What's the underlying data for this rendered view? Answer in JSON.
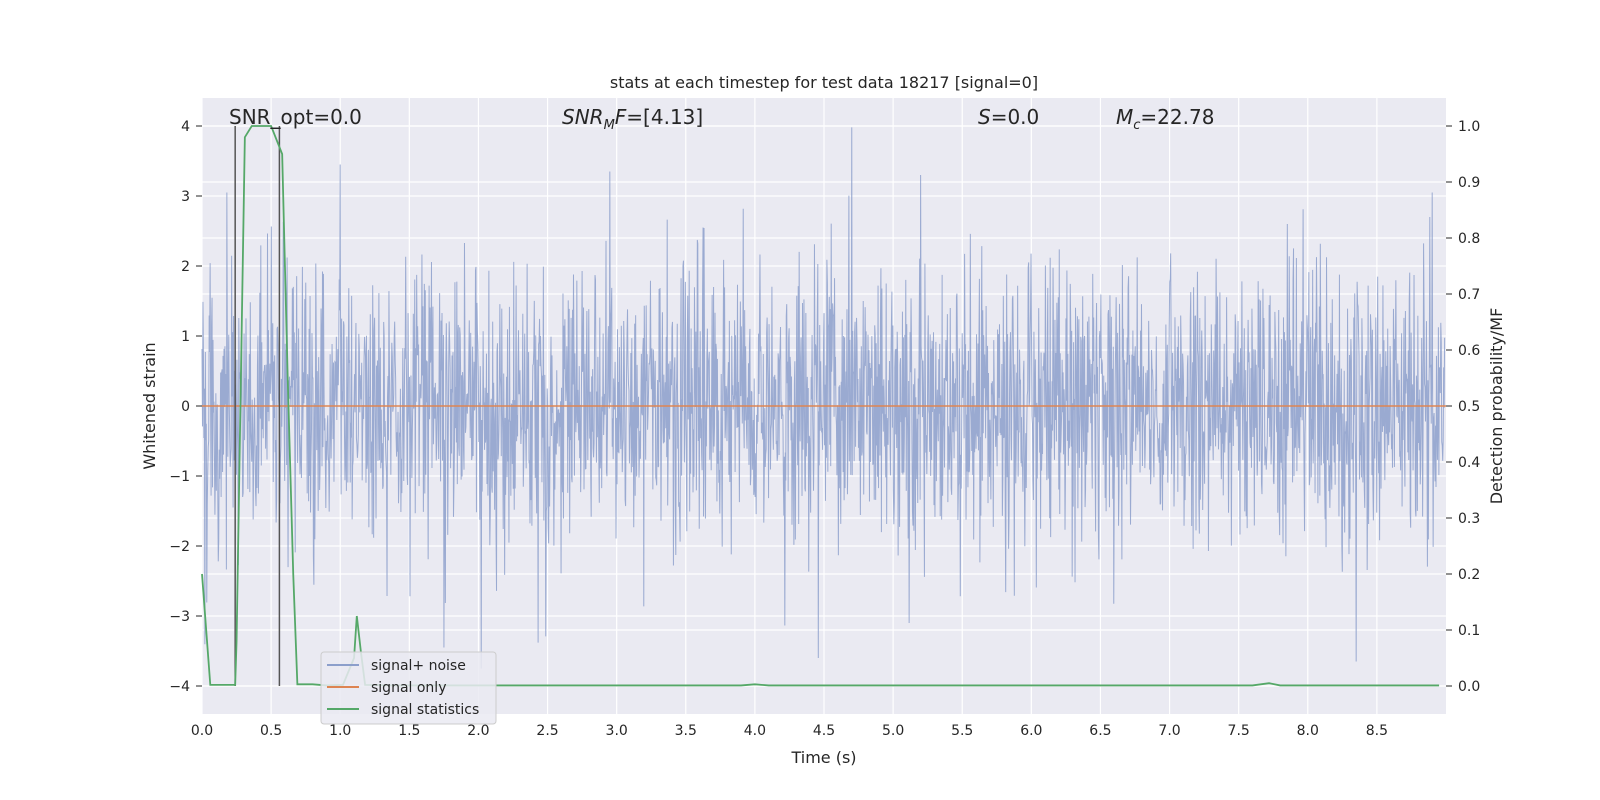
{
  "chart_data": {
    "type": "line",
    "title": "stats at each timestep for test data 18217 [signal=0]",
    "xlabel": "Time (s)",
    "ylabel": "Whitened strain",
    "ylabel_right": "Detection probability/MF",
    "xlim": [
      0.0,
      9.0
    ],
    "ylim": [
      -4.4,
      4.4
    ],
    "ylim_right": [
      -0.05,
      1.05
    ],
    "x_ticks": [
      0.0,
      0.5,
      1.0,
      1.5,
      2.0,
      2.5,
      3.0,
      3.5,
      4.0,
      4.5,
      5.0,
      5.5,
      6.0,
      6.5,
      7.0,
      7.5,
      8.0,
      8.5
    ],
    "x_tick_labels": [
      "0.0",
      "0.5",
      "1.0",
      "1.5",
      "2.0",
      "2.5",
      "3.0",
      "3.5",
      "4.0",
      "4.5",
      "5.0",
      "5.5",
      "6.0",
      "6.5",
      "7.0",
      "7.5",
      "8.0",
      "8.5"
    ],
    "y_ticks": [
      -4,
      -3,
      -2,
      -1,
      0,
      1,
      2,
      3,
      4
    ],
    "y_tick_labels": [
      "−4",
      "−3",
      "−2",
      "−1",
      "0",
      "1",
      "2",
      "3",
      "4"
    ],
    "y_ticks_right": [
      0.0,
      0.1,
      0.2,
      0.3,
      0.4,
      0.5,
      0.6,
      0.7,
      0.8,
      0.9,
      1.0
    ],
    "y_tick_labels_right": [
      "0.0",
      "0.1",
      "0.2",
      "0.3",
      "0.4",
      "0.5",
      "0.6",
      "0.7",
      "0.8",
      "0.9",
      "1.0"
    ],
    "annotations": {
      "snr_opt": "SNR_opt=0.0",
      "snr_mf_label": "SNR",
      "snr_mf_sub": "M",
      "snr_mf_rest": "F=[4.13]",
      "s_label": "S",
      "s_rest": "=0.0",
      "mc_label": "M",
      "mc_sub": "c",
      "mc_rest": "=22.78"
    },
    "vertical_lines_x": [
      0.24,
      0.56
    ],
    "series": [
      {
        "name": "signal+ noise",
        "color": "#8c9fcb",
        "axis": "left",
        "description": "whitened noise, roughly Gaussian with std ~1",
        "x_range": [
          0.0,
          8.99
        ],
        "amplitude_range": [
          -3.7,
          3.98
        ],
        "notable_peaks": [
          {
            "x": 0.18,
            "y": 3.05
          },
          {
            "x": 1.0,
            "y": 3.45
          },
          {
            "x": 1.75,
            "y": -3.45
          },
          {
            "x": 2.02,
            "y": -3.75
          },
          {
            "x": 2.95,
            "y": 3.35
          },
          {
            "x": 4.46,
            "y": -3.6
          },
          {
            "x": 4.7,
            "y": 3.98
          },
          {
            "x": 5.2,
            "y": 3.3
          },
          {
            "x": 8.35,
            "y": -3.65
          },
          {
            "x": 8.9,
            "y": 3.05
          }
        ]
      },
      {
        "name": "signal only",
        "color": "#dd8452",
        "axis": "left",
        "x": [
          0.0,
          9.0
        ],
        "y": [
          0.0,
          0.0
        ]
      },
      {
        "name": "signal statistics",
        "color": "#55a868",
        "axis": "right",
        "x": [
          0.0,
          0.06,
          0.24,
          0.25,
          0.31,
          0.36,
          0.5,
          0.58,
          0.62,
          0.66,
          0.69,
          0.8,
          0.9,
          1.02,
          1.1,
          1.12,
          1.15,
          1.18,
          1.4,
          2.0,
          3.0,
          3.9,
          4.0,
          4.1,
          5.0,
          6.0,
          7.0,
          7.6,
          7.72,
          7.8,
          8.0,
          8.95
        ],
        "y": [
          0.2,
          0.002,
          0.002,
          0.08,
          0.98,
          1.0,
          1.0,
          0.95,
          0.55,
          0.2,
          0.003,
          0.003,
          0.001,
          0.002,
          0.05,
          0.125,
          0.06,
          0.002,
          0.001,
          0.001,
          0.001,
          0.001,
          0.003,
          0.001,
          0.001,
          0.001,
          0.001,
          0.001,
          0.005,
          0.001,
          0.001,
          0.001
        ]
      }
    ],
    "legend": {
      "position": "lower-left",
      "entries": [
        "signal+ noise",
        "signal only",
        "signal statistics"
      ]
    }
  }
}
